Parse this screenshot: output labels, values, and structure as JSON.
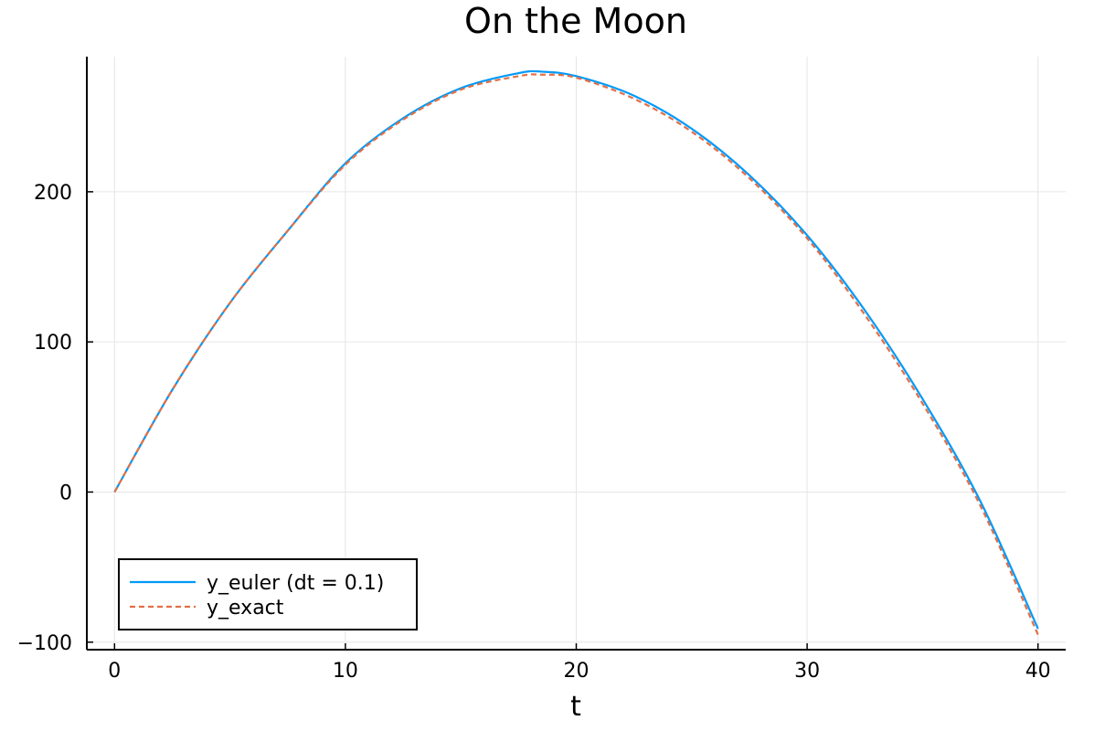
{
  "chart_data": {
    "type": "line",
    "title": "On the Moon",
    "xlabel": "t",
    "ylabel": "",
    "xlim": [
      -1.2,
      41.2
    ],
    "ylim": [
      -105,
      290
    ],
    "xticks": [
      0,
      10,
      20,
      30,
      40
    ],
    "xtick_labels": [
      "0",
      "10",
      "20",
      "30",
      "40"
    ],
    "yticks": [
      -100,
      0,
      100,
      200
    ],
    "ytick_labels": [
      "−100",
      "0",
      "100",
      "200"
    ],
    "grid": true,
    "legend_position": "bottom-left",
    "series": [
      {
        "name": "y_euler (dt = 0.1)",
        "color": "#009af9",
        "style": "solid",
        "x": [
          0,
          2.5,
          5,
          7.5,
          10,
          12.5,
          15,
          17.5,
          18.5,
          20,
          22.5,
          25,
          27.5,
          30,
          32.5,
          35,
          37.5,
          40
        ],
        "y": [
          0,
          68,
          126,
          174,
          219,
          249,
          269,
          279,
          280,
          277,
          264,
          242,
          211,
          171,
          121,
          62,
          -6,
          -91
        ]
      },
      {
        "name": "y_exact",
        "color": "#e26f46",
        "style": "dashed",
        "x": [
          0,
          2.5,
          5,
          7.5,
          10,
          12.5,
          15,
          17.5,
          18.5,
          20,
          22.5,
          25,
          27.5,
          30,
          32.5,
          35,
          37.5,
          40
        ],
        "y": [
          0,
          68,
          126,
          174,
          218,
          248,
          268,
          277,
          278,
          276,
          262,
          240,
          209,
          169,
          118,
          59,
          -9,
          -95
        ]
      }
    ]
  }
}
